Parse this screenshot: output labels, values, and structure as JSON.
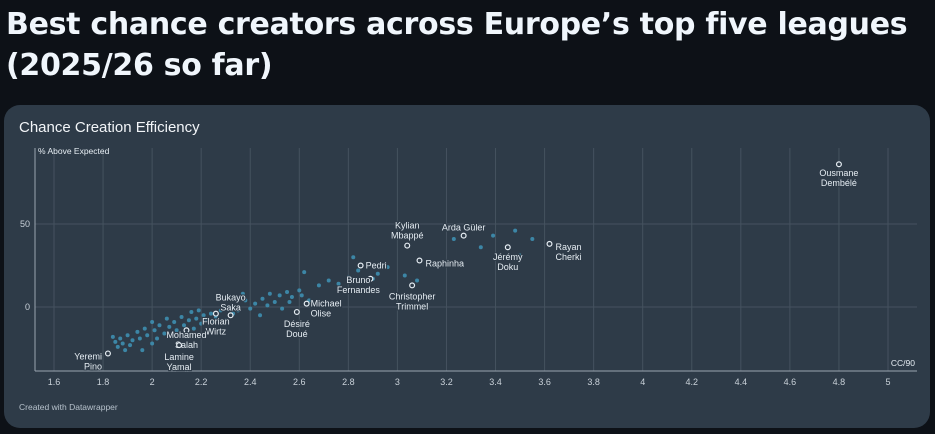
{
  "page": {
    "title": "Best chance creators across Europe’s top five leagues (2025/26 so far)"
  },
  "card": {
    "title": "Chance Creation Efficiency",
    "credit": "Created with Datawrapper"
  },
  "chart_data": {
    "type": "scatter",
    "title": "Chance Creation Efficiency",
    "xlabel": "CC/90",
    "ylabel": "% Above Expected",
    "xlim": [
      1.5,
      5.1
    ],
    "ylim": [
      -38,
      95
    ],
    "xticks": [
      1.6,
      1.8,
      2,
      2.2,
      2.4,
      2.6,
      2.8,
      3,
      3.2,
      3.4,
      3.6,
      3.8,
      4,
      4.2,
      4.4,
      4.6,
      4.8,
      5
    ],
    "yticks": [
      0,
      50
    ],
    "highlighted": [
      {
        "name": "Ousmane Dembélé",
        "x": 4.8,
        "y": 86,
        "lines": [
          "Ousmane",
          "Dembélé"
        ],
        "anchor": "middle",
        "dx": 0,
        "dy": 9
      },
      {
        "name": "Rayan Cherki",
        "x": 3.62,
        "y": 38,
        "lines": [
          "Rayan",
          "Cherki"
        ],
        "anchor": "start",
        "dx": 6,
        "dy": 3
      },
      {
        "name": "Arda Güler",
        "x": 3.27,
        "y": 43,
        "lines": [
          "Arda Güler"
        ],
        "anchor": "middle",
        "dx": 0,
        "dy": -8
      },
      {
        "name": "Kylian Mbappé",
        "x": 3.04,
        "y": 37,
        "lines": [
          "Kylian",
          "Mbappé"
        ],
        "anchor": "middle",
        "dx": 0,
        "dy": -20
      },
      {
        "name": "Jérémy Doku",
        "x": 3.45,
        "y": 36,
        "lines": [
          "Jérémy",
          "Doku"
        ],
        "anchor": "middle",
        "dx": 0,
        "dy": 10
      },
      {
        "name": "Raphinha",
        "x": 3.09,
        "y": 28,
        "lines": [
          "Raphinha"
        ],
        "anchor": "start",
        "dx": 6,
        "dy": 3
      },
      {
        "name": "Pedri",
        "x": 2.85,
        "y": 25,
        "lines": [
          "Pedri"
        ],
        "anchor": "start",
        "dx": 5,
        "dy": 0
      },
      {
        "name": "Bruno Fernandes",
        "x": 2.89,
        "y": 17,
        "lines": [
          "Bruno",
          "Fernandes"
        ],
        "anchor": "middle",
        "dx": -12,
        "dy": 1
      },
      {
        "name": "Christopher Trimmel",
        "x": 3.06,
        "y": 13,
        "lines": [
          "Christopher",
          "Trimmel"
        ],
        "anchor": "middle",
        "dx": 0,
        "dy": 11
      },
      {
        "name": "Michael Olise",
        "x": 2.63,
        "y": 2,
        "lines": [
          "Michael",
          "Olise"
        ],
        "anchor": "start",
        "dx": 4,
        "dy": 0
      },
      {
        "name": "Désiré Doué",
        "x": 2.59,
        "y": -3,
        "lines": [
          "Désiré",
          "Doué"
        ],
        "anchor": "middle",
        "dx": 0,
        "dy": 12
      },
      {
        "name": "Bukayo Saka",
        "x": 2.32,
        "y": -5,
        "lines": [
          "Bukayo",
          "Saka"
        ],
        "anchor": "middle",
        "dx": 0,
        "dy": -18
      },
      {
        "name": "Florian Wirtz",
        "x": 2.26,
        "y": -4,
        "lines": [
          "Florian",
          "Wirtz"
        ],
        "anchor": "middle",
        "dx": 0,
        "dy": 8
      },
      {
        "name": "Mohamed Salah",
        "x": 2.14,
        "y": -14,
        "lines": [
          "Mohamed",
          "Salah"
        ],
        "anchor": "middle",
        "dx": 0,
        "dy": 5
      },
      {
        "name": "Lamine Yamal",
        "x": 2.11,
        "y": -23,
        "lines": [
          "Lamine",
          "Yamal"
        ],
        "anchor": "middle",
        "dx": 0,
        "dy": 12
      },
      {
        "name": "Yeremi Pino",
        "x": 1.82,
        "y": -28,
        "lines": [
          "Yeremi",
          "Pino"
        ],
        "anchor": "end",
        "dx": -6,
        "dy": 3
      }
    ],
    "points": [
      [
        1.84,
        -18
      ],
      [
        1.85,
        -21
      ],
      [
        1.86,
        -24
      ],
      [
        1.87,
        -19
      ],
      [
        1.88,
        -22
      ],
      [
        1.89,
        -26
      ],
      [
        1.9,
        -17
      ],
      [
        1.91,
        -23
      ],
      [
        1.92,
        -20
      ],
      [
        1.94,
        -15
      ],
      [
        1.95,
        -19
      ],
      [
        1.96,
        -26
      ],
      [
        1.97,
        -13
      ],
      [
        1.98,
        -17
      ],
      [
        2.0,
        -22
      ],
      [
        2.0,
        -9
      ],
      [
        2.01,
        -14
      ],
      [
        2.02,
        -19
      ],
      [
        2.03,
        -11
      ],
      [
        2.05,
        -16
      ],
      [
        2.06,
        -7
      ],
      [
        2.07,
        -12
      ],
      [
        2.08,
        -18
      ],
      [
        2.09,
        -9
      ],
      [
        2.1,
        -14
      ],
      [
        2.12,
        -6
      ],
      [
        2.13,
        -11
      ],
      [
        2.15,
        -8
      ],
      [
        2.16,
        -3
      ],
      [
        2.17,
        -13
      ],
      [
        2.18,
        -7
      ],
      [
        2.19,
        -2
      ],
      [
        2.2,
        -10
      ],
      [
        2.21,
        -5
      ],
      [
        2.22,
        -8
      ],
      [
        2.24,
        -4
      ],
      [
        2.25,
        -9
      ],
      [
        2.26,
        -6
      ],
      [
        2.28,
        -2
      ],
      [
        2.3,
        -8
      ],
      [
        2.33,
        -4
      ],
      [
        2.35,
        -2
      ],
      [
        2.37,
        8
      ],
      [
        2.38,
        4
      ],
      [
        2.4,
        -1
      ],
      [
        2.42,
        2
      ],
      [
        2.44,
        -5
      ],
      [
        2.45,
        5
      ],
      [
        2.47,
        1
      ],
      [
        2.48,
        8
      ],
      [
        2.5,
        3
      ],
      [
        2.52,
        7
      ],
      [
        2.53,
        -1
      ],
      [
        2.55,
        9
      ],
      [
        2.56,
        3
      ],
      [
        2.57,
        6
      ],
      [
        2.6,
        10
      ],
      [
        2.61,
        7
      ],
      [
        2.62,
        21
      ],
      [
        2.64,
        4
      ],
      [
        2.68,
        13
      ],
      [
        2.72,
        16
      ],
      [
        2.76,
        14
      ],
      [
        2.8,
        18
      ],
      [
        2.82,
        30
      ],
      [
        2.84,
        22
      ],
      [
        2.86,
        16
      ],
      [
        2.9,
        17
      ],
      [
        2.92,
        20
      ],
      [
        2.96,
        24
      ],
      [
        3.03,
        19
      ],
      [
        3.08,
        16
      ],
      [
        3.23,
        41
      ],
      [
        3.34,
        36
      ],
      [
        3.39,
        43
      ],
      [
        3.48,
        46
      ],
      [
        3.55,
        41
      ],
      [
        3.5,
        31
      ]
    ]
  }
}
